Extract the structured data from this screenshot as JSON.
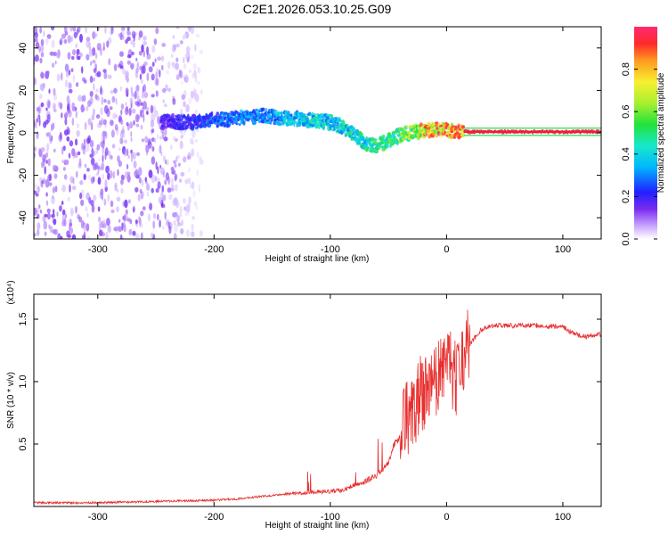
{
  "title": "C2E1.2026.053.10.25.G09",
  "colors": {
    "spectrogram_low": "#7b2cf0",
    "spectrogram_mid": "#19e3d0",
    "spectrogram_high": "#e8213a",
    "snr_line": "#e8302f",
    "axes": "#000000"
  },
  "chart_data": [
    {
      "type": "heatmap",
      "name": "spectrogram",
      "title": "C2E1.2026.053.10.25.G09",
      "xlabel": "Height of straight line (km)",
      "ylabel": "Frequency (Hz)",
      "xlim": [
        -355,
        133
      ],
      "ylim": [
        -50,
        50
      ],
      "xticks": [
        -300,
        -200,
        -100,
        0,
        100
      ],
      "yticks": [
        -40,
        -20,
        0,
        20,
        40
      ],
      "colorbar": {
        "label": "Normalized spectral amplitude",
        "range": [
          0,
          1
        ],
        "ticks": [
          0.0,
          0.2,
          0.4,
          0.6,
          0.8
        ]
      },
      "ridge": {
        "x": [
          -245,
          -220,
          -200,
          -180,
          -160,
          -140,
          -120,
          -100,
          -90,
          -80,
          -70,
          -60,
          -50,
          -40,
          -30,
          -20,
          -10,
          0,
          20,
          60,
          100,
          133
        ],
        "freq": [
          5,
          5,
          6,
          7,
          8,
          7,
          6,
          5,
          3,
          0,
          -5,
          -6,
          -4,
          -1,
          0,
          1,
          2,
          1,
          0.5,
          0.5,
          0.5,
          0.5
        ],
        "amplitude": [
          0.2,
          0.25,
          0.3,
          0.35,
          0.35,
          0.4,
          0.45,
          0.45,
          0.45,
          0.5,
          0.5,
          0.55,
          0.55,
          0.6,
          0.7,
          0.85,
          0.9,
          0.95,
          1.0,
          1.0,
          1.0,
          1.0
        ]
      },
      "noise_region": {
        "x_from": -355,
        "x_to": -245,
        "amplitude": 0.1
      }
    },
    {
      "type": "line",
      "name": "snr",
      "xlabel": "Height of straight line (km)",
      "ylabel": "SNR (10 * v/v)",
      "yscale_label": "(x10⁴)",
      "xlim": [
        -355,
        133
      ],
      "ylim": [
        0,
        1.7
      ],
      "xticks": [
        -300,
        -200,
        -100,
        0,
        100
      ],
      "yticks": [
        0.5,
        1.0,
        1.5
      ],
      "series": [
        {
          "name": "SNR",
          "x": [
            -355,
            -300,
            -250,
            -200,
            -180,
            -160,
            -140,
            -120,
            -100,
            -90,
            -80,
            -70,
            -60,
            -50,
            -45,
            -40,
            -35,
            -30,
            -25,
            -20,
            -15,
            -10,
            -5,
            0,
            5,
            10,
            15,
            20,
            30,
            40,
            60,
            80,
            100,
            110,
            120,
            133
          ],
          "y": [
            0.03,
            0.03,
            0.04,
            0.05,
            0.06,
            0.08,
            0.1,
            0.11,
            0.12,
            0.13,
            0.17,
            0.2,
            0.25,
            0.35,
            0.5,
            0.55,
            0.75,
            0.75,
            0.85,
            0.9,
            0.95,
            1.0,
            1.05,
            1.1,
            1.05,
            1.05,
            1.2,
            1.3,
            1.42,
            1.45,
            1.45,
            1.45,
            1.44,
            1.38,
            1.36,
            1.38
          ]
        }
      ]
    }
  ]
}
